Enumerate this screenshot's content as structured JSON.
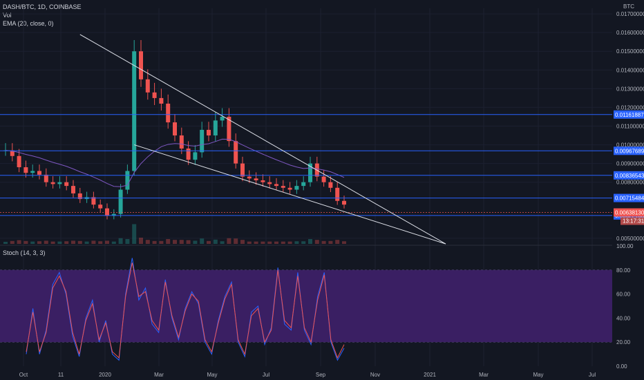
{
  "header": {
    "symbol": "DASH/BTC, 1D, COINBASE",
    "vol_label": "Vol",
    "ema_label": "EMA (20, close, 0)",
    "currency": "BTC"
  },
  "stoch": {
    "label": "Stoch (14, 3, 3)"
  },
  "colors": {
    "background": "#131722",
    "price_line": "#2962ff",
    "current_price": "#ef5350",
    "stoch_k": "#2962ff",
    "stoch_d": "#ef5350",
    "stoch_band": "#3a1f63",
    "ema": "#7e57c2",
    "candle_up": "#26a69a",
    "candle_down": "#ef5350"
  },
  "chart_data": [
    {
      "type": "candlestick",
      "title": "DASH/BTC, 1D, COINBASE",
      "ylabel": "BTC",
      "y_ticks": [
        "0.01700000",
        "0.01600000",
        "0.01500000",
        "0.01400000",
        "0.01300000",
        "0.01200000",
        "0.01100000",
        "0.01000000",
        "0.00900000",
        "0.00800000",
        "0.00500000"
      ],
      "ylim": [
        0.0047,
        0.0173
      ],
      "x_ticks": [
        "Oct",
        "11",
        "2020",
        "Mar",
        "May",
        "Jul",
        "Sep",
        "Nov",
        "2021",
        "Mar",
        "May",
        "Jul"
      ],
      "close_approx": [
        0.0097,
        0.0094,
        0.0088,
        0.0085,
        0.0086,
        0.0084,
        0.008,
        0.0079,
        0.008,
        0.0078,
        0.0074,
        0.0071,
        0.0072,
        0.0068,
        0.0066,
        0.0062,
        0.0063,
        0.0076,
        0.0086,
        0.015,
        0.0135,
        0.0128,
        0.0125,
        0.0122,
        0.0112,
        0.0105,
        0.0098,
        0.0092,
        0.0096,
        0.0108,
        0.0105,
        0.0113,
        0.0115,
        0.0102,
        0.009,
        0.0083,
        0.0082,
        0.0081,
        0.008,
        0.0079,
        0.0078,
        0.0077,
        0.0076,
        0.0078,
        0.008,
        0.009,
        0.0083,
        0.008,
        0.0077,
        0.007,
        0.0068
      ],
      "price_lines": [
        "0.01161887",
        "0.00967689",
        "0.00836543",
        "0.00715484",
        "0.00622168"
      ],
      "current_price": "0.00638130",
      "countdown": "13:17:31",
      "ema_label": "EMA (20, close, 0)",
      "overlay": "descending wedge"
    },
    {
      "type": "line",
      "title": "Stoch (14, 3, 3)",
      "y_ticks": [
        "100.00",
        "80.00",
        "60.00",
        "40.00",
        "20.00",
        "0.00"
      ],
      "ylim": [
        0,
        100
      ],
      "band": [
        20,
        80
      ],
      "series": [
        {
          "values": [
            10,
            48,
            10,
            30,
            68,
            78,
            60,
            25,
            8,
            40,
            55,
            20,
            38,
            10,
            5,
            60,
            90,
            55,
            65,
            35,
            28,
            72,
            40,
            22,
            48,
            62,
            52,
            20,
            10,
            38,
            58,
            70,
            20,
            8,
            45,
            50,
            18,
            32,
            82,
            35,
            30,
            78,
            30,
            18,
            58,
            78,
            20,
            5,
            15
          ]
        },
        {
          "values": [
            12,
            45,
            12,
            28,
            65,
            75,
            62,
            28,
            10,
            38,
            52,
            22,
            36,
            12,
            7,
            58,
            86,
            58,
            62,
            38,
            30,
            70,
            42,
            24,
            46,
            60,
            54,
            22,
            12,
            36,
            56,
            68,
            22,
            10,
            42,
            48,
            20,
            30,
            80,
            38,
            32,
            75,
            32,
            20,
            55,
            76,
            22,
            7,
            18
          ]
        }
      ]
    }
  ]
}
